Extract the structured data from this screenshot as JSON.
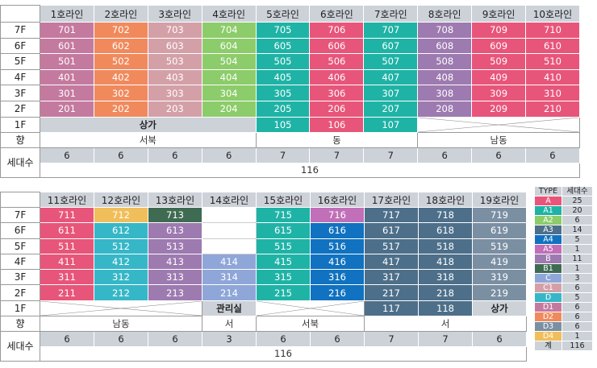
{
  "colors": {
    "A": "#e8557a",
    "A1": "#1fb3a6",
    "A2": "#8ccc6a",
    "A3": "#4d6f8a",
    "A4": "#1072c0",
    "A5": "#c06fb8",
    "B": "#9d7ab0",
    "B1": "#3f6b52",
    "C": "#8fa6d8",
    "C1": "#d4a0a8",
    "D": "#36b7c8",
    "D1": "#c47a9f",
    "D2": "#f08a5d",
    "D3": "#7b8fa3",
    "D4": "#f0be5a",
    "header": "#cdd2d9"
  },
  "top": {
    "lines": [
      "1호라인",
      "2호라인",
      "3호라인",
      "4호라인",
      "5호라인",
      "6호라인",
      "7호라인",
      "8호라인",
      "9호라인",
      "10호라인"
    ],
    "floors": [
      {
        "label": "7F",
        "units": [
          "701",
          "702",
          "703",
          "704",
          "705",
          "706",
          "707",
          "708",
          "709",
          "710"
        ],
        "types": [
          "D1",
          "D2",
          "C1",
          "A2",
          "A1",
          "A",
          "A1",
          "B",
          "A",
          "A"
        ]
      },
      {
        "label": "6F",
        "units": [
          "601",
          "602",
          "603",
          "604",
          "605",
          "606",
          "607",
          "608",
          "609",
          "610"
        ],
        "types": [
          "D1",
          "D2",
          "C1",
          "A2",
          "A1",
          "A",
          "A1",
          "B",
          "A",
          "A"
        ]
      },
      {
        "label": "5F",
        "units": [
          "501",
          "502",
          "503",
          "504",
          "505",
          "506",
          "507",
          "508",
          "509",
          "510"
        ],
        "types": [
          "D1",
          "D2",
          "C1",
          "A2",
          "A1",
          "A",
          "A1",
          "B",
          "A",
          "A"
        ]
      },
      {
        "label": "4F",
        "units": [
          "401",
          "402",
          "403",
          "404",
          "405",
          "406",
          "407",
          "408",
          "409",
          "410"
        ],
        "types": [
          "D1",
          "D2",
          "C1",
          "A2",
          "A1",
          "A",
          "A1",
          "B",
          "A",
          "A"
        ]
      },
      {
        "label": "3F",
        "units": [
          "301",
          "302",
          "303",
          "304",
          "305",
          "306",
          "307",
          "308",
          "309",
          "310"
        ],
        "types": [
          "D1",
          "D2",
          "C1",
          "A2",
          "A1",
          "A",
          "A1",
          "B",
          "A",
          "A"
        ]
      },
      {
        "label": "2F",
        "units": [
          "201",
          "202",
          "203",
          "204",
          "205",
          "206",
          "207",
          "208",
          "209",
          "210"
        ],
        "types": [
          "D1",
          "D2",
          "C1",
          "A2",
          "A1",
          "A",
          "A1",
          "B",
          "A",
          "A"
        ]
      }
    ],
    "f1": {
      "label": "1F",
      "shop": "상가",
      "units": [
        "105",
        "106",
        "107"
      ],
      "types": [
        "A1",
        "A",
        "A1"
      ]
    },
    "direction": {
      "label": "향",
      "values": [
        "서북",
        "동",
        "남동"
      ]
    },
    "households": {
      "label": "세대수",
      "values": [
        "6",
        "6",
        "6",
        "6",
        "7",
        "7",
        "7",
        "6",
        "6",
        "6"
      ],
      "total": "116"
    }
  },
  "bottom": {
    "lines": [
      "11호라인",
      "12호라인",
      "13호라인",
      "14호라인",
      "15호라인",
      "16호라인",
      "17호라인",
      "18호라인",
      "19호라인"
    ],
    "floors": [
      {
        "label": "7F",
        "units": [
          "711",
          "712",
          "713",
          "",
          "715",
          "716",
          "717",
          "718",
          "719"
        ],
        "types": [
          "A",
          "D4",
          "B1",
          "",
          "A1",
          "A5",
          "A3",
          "A3",
          "D3"
        ]
      },
      {
        "label": "6F",
        "units": [
          "611",
          "612",
          "613",
          "",
          "615",
          "616",
          "617",
          "618",
          "619"
        ],
        "types": [
          "A",
          "D",
          "B",
          "",
          "A1",
          "A4",
          "A3",
          "A3",
          "D3"
        ]
      },
      {
        "label": "5F",
        "units": [
          "511",
          "512",
          "513",
          "",
          "515",
          "516",
          "517",
          "518",
          "519"
        ],
        "types": [
          "A",
          "D",
          "B",
          "",
          "A1",
          "A4",
          "A3",
          "A3",
          "D3"
        ]
      },
      {
        "label": "4F",
        "units": [
          "411",
          "412",
          "413",
          "414",
          "415",
          "416",
          "417",
          "418",
          "419"
        ],
        "types": [
          "A",
          "D",
          "B",
          "C",
          "A1",
          "A4",
          "A3",
          "A3",
          "D3"
        ]
      },
      {
        "label": "3F",
        "units": [
          "311",
          "312",
          "313",
          "314",
          "315",
          "316",
          "317",
          "318",
          "319"
        ],
        "types": [
          "A",
          "D",
          "B",
          "C",
          "A1",
          "A4",
          "A3",
          "A3",
          "D3"
        ]
      },
      {
        "label": "2F",
        "units": [
          "211",
          "212",
          "213",
          "214",
          "215",
          "216",
          "217",
          "218",
          "219"
        ],
        "types": [
          "A",
          "D",
          "B",
          "C",
          "A1",
          "A4",
          "A3",
          "A3",
          "D3"
        ]
      }
    ],
    "f1": {
      "label": "1F",
      "mgmt": "관리실",
      "units": [
        "117",
        "118"
      ],
      "types": [
        "A3",
        "A3"
      ],
      "shop": "상가"
    },
    "direction": {
      "label": "향",
      "values": [
        "남동",
        "서",
        "서북",
        "서"
      ]
    },
    "households": {
      "label": "세대수",
      "values": [
        "6",
        "6",
        "6",
        "3",
        "6",
        "6",
        "7",
        "7",
        "6"
      ],
      "total": "116"
    }
  },
  "legend": {
    "header": [
      "TYPE",
      "세대수"
    ],
    "rows": [
      {
        "type": "A",
        "count": "25"
      },
      {
        "type": "A1",
        "count": "20"
      },
      {
        "type": "A2",
        "count": "6"
      },
      {
        "type": "A3",
        "count": "14"
      },
      {
        "type": "A4",
        "count": "5"
      },
      {
        "type": "A5",
        "count": "1"
      },
      {
        "type": "B",
        "count": "11"
      },
      {
        "type": "B1",
        "count": "1"
      },
      {
        "type": "C",
        "count": "3"
      },
      {
        "type": "C1",
        "count": "6"
      },
      {
        "type": "D",
        "count": "5"
      },
      {
        "type": "D1",
        "count": "6"
      },
      {
        "type": "D2",
        "count": "6"
      },
      {
        "type": "D3",
        "count": "6"
      },
      {
        "type": "D4",
        "count": "1"
      }
    ],
    "total": {
      "label": "계",
      "count": "116"
    }
  }
}
